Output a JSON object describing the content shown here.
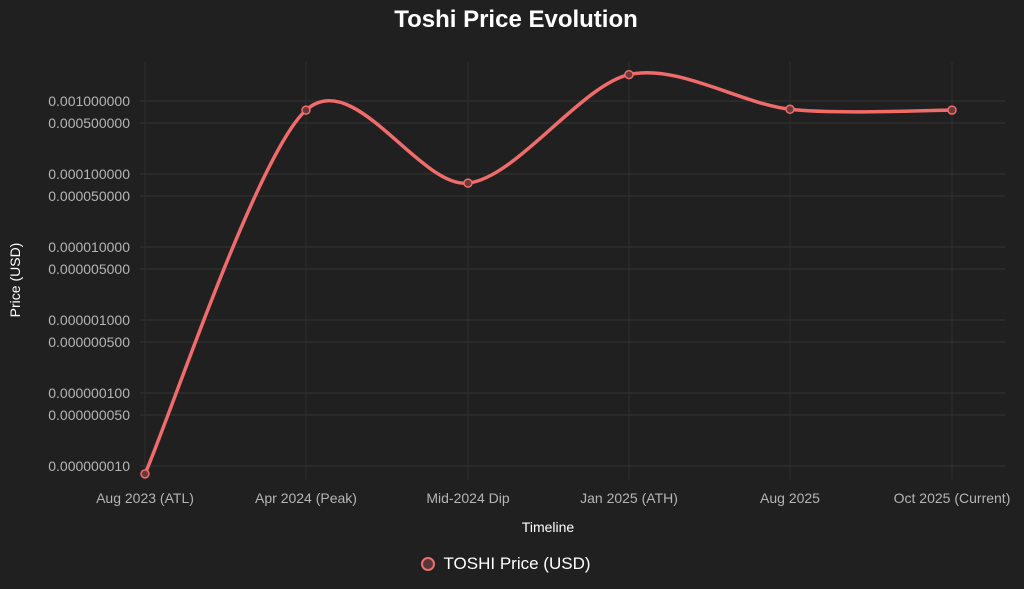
{
  "chart_data": {
    "type": "line",
    "title": "Toshi Price Evolution",
    "xlabel": "Timeline",
    "ylabel": "Price (USD)",
    "yscale": "log",
    "categories": [
      "Aug 2023 (ATL)",
      "Apr 2024 (Peak)",
      "Mid-2024 Dip",
      "Jan 2025 (ATH)",
      "Aug 2025",
      "Oct 2025 (Current)"
    ],
    "series": [
      {
        "name": "TOSHI Price (USD)",
        "color": "#f06b6b",
        "values": [
          7.8e-09,
          0.00075,
          7.5e-05,
          0.0023,
          0.00077,
          0.00075
        ]
      }
    ],
    "yticks": [
      "0.001000000",
      "0.000500000",
      "0.000100000",
      "0.000050000",
      "0.000010000",
      "0.000005000",
      "0.000001000",
      "0.000000500",
      "0.000000100",
      "0.000000050",
      "0.000000010"
    ],
    "grid": true,
    "legend_position": "bottom"
  },
  "legend": {
    "label": "TOSHI Price (USD)"
  }
}
